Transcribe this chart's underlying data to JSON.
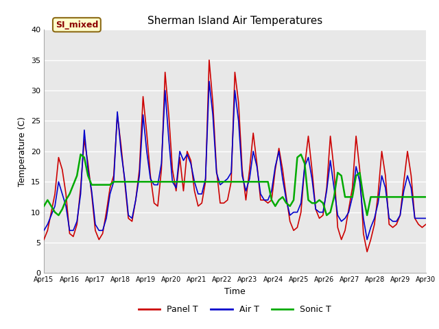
{
  "title": "Sherman Island Air Temperatures",
  "xlabel": "Time",
  "ylabel": "Temperature (C)",
  "ylim": [
    0,
    40
  ],
  "annotation": "SI_mixed",
  "plot_bg": "#e8e8e8",
  "fig_bg": "#ffffff",
  "grid_color": "#ffffff",
  "colors": {
    "panel": "#cc0000",
    "air": "#0000cc",
    "sonic": "#00aa00"
  },
  "legend": [
    "Panel T",
    "Air T",
    "Sonic T"
  ],
  "xtick_labels": [
    "Apr 15",
    "Apr 16",
    "Apr 17",
    "Apr 18",
    "Apr 19",
    "Apr 20",
    "Apr 21",
    "Apr 22",
    "Apr 23",
    "Apr 24",
    "Apr 25",
    "Apr 26",
    "Apr 27",
    "Apr 28",
    "Apr 29",
    "Apr 30"
  ],
  "panel_t": [
    5.5,
    7.0,
    10.0,
    13.0,
    19.0,
    17.0,
    13.0,
    6.5,
    6.0,
    8.0,
    14.0,
    22.0,
    18.0,
    13.0,
    7.0,
    5.5,
    6.5,
    10.0,
    14.0,
    16.0,
    26.0,
    21.0,
    15.0,
    9.0,
    8.5,
    12.0,
    17.0,
    29.0,
    23.0,
    16.0,
    11.5,
    11.0,
    17.0,
    33.0,
    26.0,
    17.0,
    13.5,
    19.0,
    13.5,
    20.0,
    18.5,
    13.5,
    11.0,
    11.5,
    15.0,
    35.0,
    28.0,
    17.0,
    11.5,
    11.5,
    12.0,
    15.0,
    33.0,
    28.0,
    17.0,
    12.0,
    17.0,
    23.0,
    18.0,
    12.0,
    12.0,
    11.5,
    12.0,
    17.0,
    20.5,
    17.0,
    12.5,
    8.5,
    7.0,
    7.5,
    10.0,
    17.5,
    22.5,
    17.0,
    10.5,
    9.0,
    9.5,
    14.0,
    22.5,
    17.0,
    7.5,
    5.5,
    7.0,
    10.5,
    14.0,
    22.5,
    17.0,
    6.5,
    3.5,
    5.5,
    8.0,
    13.0,
    20.0,
    16.0,
    8.0,
    7.5,
    8.0,
    9.5,
    15.0,
    20.0,
    16.0,
    9.0,
    8.0,
    7.5,
    8.0
  ],
  "air_t": [
    7.0,
    8.0,
    9.5,
    11.0,
    15.0,
    13.0,
    11.0,
    7.0,
    7.0,
    8.5,
    13.0,
    23.5,
    17.0,
    13.5,
    8.0,
    7.0,
    7.0,
    9.0,
    13.0,
    15.0,
    26.5,
    20.0,
    15.5,
    9.5,
    9.0,
    12.0,
    16.0,
    26.0,
    20.0,
    15.5,
    14.5,
    14.5,
    18.0,
    30.0,
    22.0,
    15.0,
    14.0,
    20.0,
    18.5,
    19.5,
    18.0,
    15.0,
    13.0,
    13.0,
    15.5,
    31.5,
    26.0,
    16.5,
    14.5,
    15.0,
    15.5,
    16.5,
    30.0,
    25.0,
    16.0,
    13.5,
    15.5,
    20.0,
    17.5,
    13.0,
    12.0,
    12.0,
    13.5,
    17.5,
    20.0,
    15.5,
    12.0,
    9.5,
    10.0,
    10.0,
    11.5,
    17.5,
    19.0,
    15.5,
    10.5,
    10.0,
    10.0,
    13.5,
    18.5,
    14.0,
    9.5,
    8.5,
    9.0,
    10.0,
    12.5,
    17.5,
    15.0,
    9.0,
    5.5,
    7.5,
    9.0,
    11.5,
    16.0,
    14.0,
    9.0,
    8.5,
    8.5,
    9.5,
    13.5,
    16.0,
    14.0,
    9.0,
    9.0,
    9.0,
    9.0
  ],
  "sonic_t": [
    11.0,
    12.0,
    11.0,
    10.0,
    9.5,
    10.5,
    12.0,
    13.0,
    14.5,
    16.0,
    19.5,
    19.0,
    16.0,
    14.5,
    14.5,
    14.5,
    14.5,
    14.5,
    14.5,
    15.0,
    15.0,
    15.0,
    15.0,
    15.0,
    15.0,
    15.0,
    15.0,
    15.0,
    15.0,
    15.0,
    15.0,
    15.0,
    15.0,
    15.0,
    15.0,
    15.0,
    15.0,
    15.0,
    15.0,
    15.0,
    15.0,
    15.0,
    15.0,
    15.0,
    15.0,
    15.0,
    15.0,
    15.0,
    15.0,
    15.0,
    15.0,
    15.0,
    15.0,
    15.0,
    15.0,
    15.0,
    15.0,
    15.0,
    15.0,
    15.0,
    15.0,
    15.0,
    12.0,
    11.0,
    12.0,
    12.5,
    11.5,
    11.0,
    12.0,
    19.0,
    19.5,
    18.0,
    12.0,
    11.5,
    11.5,
    12.0,
    11.5,
    9.5,
    10.0,
    12.5,
    16.5,
    16.0,
    12.5,
    12.5,
    12.5,
    16.0,
    16.5,
    12.5,
    9.5,
    12.5,
    12.5,
    12.5,
    12.5,
    12.5,
    12.5,
    12.5,
    12.5,
    12.5,
    12.5,
    12.5,
    12.5,
    12.5,
    12.5,
    12.5,
    12.5
  ]
}
